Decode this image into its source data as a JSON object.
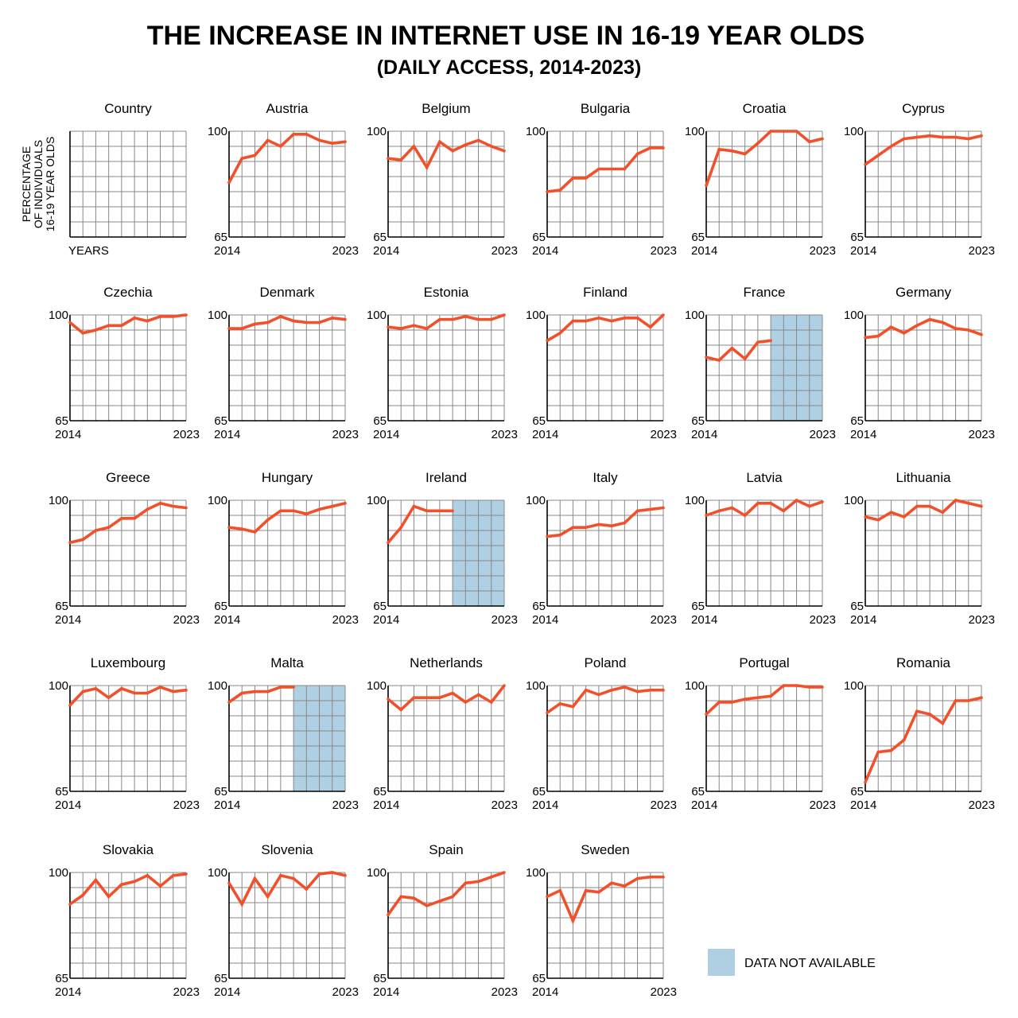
{
  "title": "THE INCREASE IN INTERNET USE IN 16-19 YEAR OLDS",
  "subtitle": "(DAILY ACCESS, 2014-2023)",
  "colors": {
    "line": "#F2502A",
    "grid": "#888888",
    "axis": "#000000",
    "unavailable": "#AFCFE2"
  },
  "key_panel": {
    "name": "Country",
    "ylabel_lines": [
      "PERCENTAGE",
      "OF INDIVIDUALS",
      "16-19 YEAR OLDS"
    ],
    "xlabel": "YEARS"
  },
  "legend": {
    "label": "DATA NOT AVAILABLE",
    "position": "bottom-right"
  },
  "chart_data": [
    {
      "type": "line",
      "title": "Austria",
      "x": [
        2014,
        2015,
        2016,
        2017,
        2018,
        2019,
        2020,
        2021,
        2022,
        2023
      ],
      "values": [
        83,
        91,
        92,
        97,
        95,
        99,
        99,
        97,
        96,
        96.5
      ],
      "ylim": [
        65,
        100
      ],
      "tick_labels": [
        "100",
        "65",
        "2014",
        "2023"
      ]
    },
    {
      "type": "line",
      "title": "Belgium",
      "x": [
        2014,
        2015,
        2016,
        2017,
        2018,
        2019,
        2020,
        2021,
        2022,
        2023
      ],
      "values": [
        91,
        90.5,
        95,
        88,
        96.5,
        93.5,
        95.5,
        97,
        95,
        93.5
      ],
      "ylim": [
        65,
        100
      ],
      "tick_labels": [
        "100",
        "65",
        "2014",
        "2023"
      ]
    },
    {
      "type": "line",
      "title": "Bulgaria",
      "x": [
        2014,
        2015,
        2016,
        2017,
        2018,
        2019,
        2020,
        2021,
        2022,
        2023
      ],
      "values": [
        80,
        80.5,
        84.5,
        84.5,
        87.5,
        87.5,
        87.5,
        92.5,
        94.5,
        94.5
      ],
      "ylim": [
        65,
        100
      ],
      "tick_labels": [
        "100",
        "65",
        "2014",
        "2023"
      ]
    },
    {
      "type": "line",
      "title": "Croatia",
      "x": [
        2014,
        2015,
        2016,
        2017,
        2018,
        2019,
        2020,
        2021,
        2022,
        2023
      ],
      "values": [
        82,
        94,
        93.5,
        92.5,
        96,
        100,
        100,
        100,
        96.5,
        97.5
      ],
      "ylim": [
        65,
        100
      ],
      "tick_labels": [
        "100",
        "65",
        "2014",
        "2023"
      ]
    },
    {
      "type": "line",
      "title": "Cyprus",
      "x": [
        2014,
        2015,
        2016,
        2017,
        2018,
        2019,
        2020,
        2021,
        2022,
        2023
      ],
      "values": [
        89,
        92,
        95,
        97.5,
        98,
        98.5,
        98,
        98,
        97.5,
        98.5
      ],
      "ylim": [
        65,
        100
      ],
      "tick_labels": [
        "100",
        "65",
        "2014",
        "2023"
      ]
    },
    {
      "type": "line",
      "title": "Czechia",
      "x": [
        2014,
        2015,
        2016,
        2017,
        2018,
        2019,
        2020,
        2021,
        2022,
        2023
      ],
      "values": [
        97.5,
        94,
        95,
        96.5,
        96.5,
        99,
        98,
        99.5,
        99.5,
        100
      ],
      "ylim": [
        65,
        100
      ],
      "tick_labels": [
        "100",
        "65",
        "2014",
        "2023"
      ]
    },
    {
      "type": "line",
      "title": "Denmark",
      "x": [
        2014,
        2015,
        2016,
        2017,
        2018,
        2019,
        2020,
        2021,
        2022,
        2023
      ],
      "values": [
        95.5,
        95.5,
        97,
        97.5,
        99.5,
        98,
        97.5,
        97.5,
        99,
        98.5
      ],
      "ylim": [
        65,
        100
      ],
      "tick_labels": [
        "100",
        "65",
        "2014",
        "2023"
      ]
    },
    {
      "type": "line",
      "title": "Estonia",
      "x": [
        2014,
        2015,
        2016,
        2017,
        2018,
        2019,
        2020,
        2021,
        2022,
        2023
      ],
      "values": [
        96,
        95.5,
        96.5,
        95.5,
        98.5,
        98.5,
        99.5,
        98.5,
        98.5,
        100
      ],
      "ylim": [
        65,
        100
      ],
      "tick_labels": [
        "100",
        "65",
        "2014",
        "2023"
      ]
    },
    {
      "type": "line",
      "title": "Finland",
      "x": [
        2014,
        2015,
        2016,
        2017,
        2018,
        2019,
        2020,
        2021,
        2022,
        2023
      ],
      "values": [
        91.5,
        94,
        98,
        98,
        99,
        98,
        99,
        99,
        96,
        100
      ],
      "ylim": [
        65,
        100
      ],
      "tick_labels": [
        "100",
        "65",
        "2014",
        "2023"
      ]
    },
    {
      "type": "line",
      "title": "France",
      "x": [
        2014,
        2015,
        2016,
        2017,
        2018,
        2019,
        2020,
        2021,
        2022,
        2023
      ],
      "values": [
        86,
        85,
        89,
        85.5,
        91,
        91.5,
        null,
        null,
        null,
        null
      ],
      "unavailable_years": [
        2019,
        2023
      ],
      "ylim": [
        65,
        100
      ],
      "tick_labels": [
        "100",
        "65",
        "2014",
        "2023"
      ]
    },
    {
      "type": "line",
      "title": "Germany",
      "x": [
        2014,
        2015,
        2016,
        2017,
        2018,
        2019,
        2020,
        2021,
        2022,
        2023
      ],
      "values": [
        92.5,
        93,
        96,
        94,
        96.5,
        98.5,
        97.5,
        95.5,
        95,
        93.5
      ],
      "ylim": [
        65,
        100
      ],
      "tick_labels": [
        "100",
        "65",
        "2014",
        "2023"
      ]
    },
    {
      "type": "line",
      "title": "Greece",
      "x": [
        2014,
        2015,
        2016,
        2017,
        2018,
        2019,
        2020,
        2021,
        2022,
        2023
      ],
      "values": [
        86,
        87,
        90,
        91,
        94,
        94,
        97,
        99,
        98,
        97.5
      ],
      "ylim": [
        65,
        100
      ],
      "tick_labels": [
        "100",
        "65",
        "2014",
        "2023"
      ]
    },
    {
      "type": "line",
      "title": "Hungary",
      "x": [
        2014,
        2015,
        2016,
        2017,
        2018,
        2019,
        2020,
        2021,
        2022,
        2023
      ],
      "values": [
        91,
        90.5,
        89.5,
        93.5,
        96.5,
        96.5,
        95.5,
        97,
        98,
        99
      ],
      "ylim": [
        65,
        100
      ],
      "tick_labels": [
        "100",
        "65",
        "2014",
        "2023"
      ]
    },
    {
      "type": "line",
      "title": "Ireland",
      "x": [
        2014,
        2015,
        2016,
        2017,
        2018,
        2019,
        2020,
        2021,
        2022,
        2023
      ],
      "values": [
        86,
        91,
        98,
        96.5,
        96.5,
        96.5,
        null,
        null,
        null,
        null
      ],
      "unavailable_years": [
        2019,
        2023
      ],
      "ylim": [
        65,
        100
      ],
      "tick_labels": [
        "100",
        "65",
        "2014",
        "2023"
      ]
    },
    {
      "type": "line",
      "title": "Italy",
      "x": [
        2014,
        2015,
        2016,
        2017,
        2018,
        2019,
        2020,
        2021,
        2022,
        2023
      ],
      "values": [
        88,
        88.5,
        91,
        91,
        92,
        91.5,
        92.5,
        96.5,
        97,
        97.5
      ],
      "ylim": [
        65,
        100
      ],
      "tick_labels": [
        "100",
        "65",
        "2014",
        "2023"
      ]
    },
    {
      "type": "line",
      "title": "Latvia",
      "x": [
        2014,
        2015,
        2016,
        2017,
        2018,
        2019,
        2020,
        2021,
        2022,
        2023
      ],
      "values": [
        95,
        96.5,
        97.5,
        95,
        99,
        99,
        96.5,
        100,
        98,
        99.5
      ],
      "ylim": [
        65,
        100
      ],
      "tick_labels": [
        "100",
        "65",
        "2014",
        "2023"
      ]
    },
    {
      "type": "line",
      "title": "Lithuania",
      "x": [
        2014,
        2015,
        2016,
        2017,
        2018,
        2019,
        2020,
        2021,
        2022,
        2023
      ],
      "values": [
        94.5,
        93.5,
        96,
        94.5,
        98,
        98,
        96,
        100,
        99,
        98
      ],
      "ylim": [
        65,
        100
      ],
      "tick_labels": [
        "100",
        "65",
        "2014",
        "2023"
      ]
    },
    {
      "type": "line",
      "title": "Luxembourg",
      "x": [
        2014,
        2015,
        2016,
        2017,
        2018,
        2019,
        2020,
        2021,
        2022,
        2023
      ],
      "values": [
        93.5,
        98,
        99,
        96,
        99,
        97.5,
        97.5,
        99.5,
        98,
        98.5
      ],
      "ylim": [
        65,
        100
      ],
      "tick_labels": [
        "100",
        "65",
        "2014",
        "2023"
      ]
    },
    {
      "type": "line",
      "title": "Malta",
      "x": [
        2014,
        2015,
        2016,
        2017,
        2018,
        2019,
        2020,
        2021,
        2022,
        2023
      ],
      "values": [
        94.5,
        97.5,
        98,
        98,
        99.5,
        99.5,
        null,
        null,
        null,
        null
      ],
      "unavailable_years": [
        2019,
        2023
      ],
      "ylim": [
        65,
        100
      ],
      "tick_labels": [
        "100",
        "65",
        "2014",
        "2023"
      ]
    },
    {
      "type": "line",
      "title": "Netherlands",
      "x": [
        2014,
        2015,
        2016,
        2017,
        2018,
        2019,
        2020,
        2021,
        2022,
        2023
      ],
      "values": [
        95.5,
        92,
        96,
        96,
        96,
        97.5,
        94.5,
        97,
        94.5,
        100
      ],
      "ylim": [
        65,
        100
      ],
      "tick_labels": [
        "100",
        "65",
        "2014",
        "2023"
      ]
    },
    {
      "type": "line",
      "title": "Poland",
      "x": [
        2014,
        2015,
        2016,
        2017,
        2018,
        2019,
        2020,
        2021,
        2022,
        2023
      ],
      "values": [
        91,
        94,
        93,
        98.5,
        97,
        98.5,
        99.5,
        98,
        98.5,
        98.5
      ],
      "ylim": [
        65,
        100
      ],
      "tick_labels": [
        "100",
        "65",
        "2014",
        "2023"
      ]
    },
    {
      "type": "line",
      "title": "Portugal",
      "x": [
        2014,
        2015,
        2016,
        2017,
        2018,
        2019,
        2020,
        2021,
        2022,
        2023
      ],
      "values": [
        90.5,
        94.5,
        94.5,
        95.5,
        96,
        96.5,
        100,
        100,
        99.5,
        99.5
      ],
      "ylim": [
        65,
        100
      ],
      "tick_labels": [
        "100",
        "65",
        "2014",
        "2023"
      ]
    },
    {
      "type": "line",
      "title": "Romania",
      "x": [
        2014,
        2015,
        2016,
        2017,
        2018,
        2019,
        2020,
        2021,
        2022,
        2023
      ],
      "values": [
        68,
        78,
        78.5,
        82,
        91.5,
        90.5,
        87.5,
        95,
        95,
        96
      ],
      "ylim": [
        65,
        100
      ],
      "tick_labels": [
        "100",
        "65",
        "2014",
        "2023"
      ]
    },
    {
      "type": "line",
      "title": "Slovakia",
      "x": [
        2014,
        2015,
        2016,
        2017,
        2018,
        2019,
        2020,
        2021,
        2022,
        2023
      ],
      "values": [
        89.5,
        92.5,
        97.5,
        92,
        96,
        97,
        99,
        95.5,
        99,
        99.5
      ],
      "ylim": [
        65,
        100
      ],
      "tick_labels": [
        "100",
        "65",
        "2014",
        "2023"
      ]
    },
    {
      "type": "line",
      "title": "Slovenia",
      "x": [
        2014,
        2015,
        2016,
        2017,
        2018,
        2019,
        2020,
        2021,
        2022,
        2023
      ],
      "values": [
        96.5,
        89.5,
        98,
        92,
        99,
        98,
        94.5,
        99.5,
        100,
        99
      ],
      "ylim": [
        65,
        100
      ],
      "tick_labels": [
        "100",
        "65",
        "2014",
        "2023"
      ]
    },
    {
      "type": "line",
      "title": "Spain",
      "x": [
        2014,
        2015,
        2016,
        2017,
        2018,
        2019,
        2020,
        2021,
        2022,
        2023
      ],
      "values": [
        86,
        92,
        91.5,
        89,
        90.5,
        92,
        96.5,
        97,
        98.5,
        100
      ],
      "ylim": [
        65,
        100
      ],
      "tick_labels": [
        "100",
        "65",
        "2014",
        "2023"
      ]
    },
    {
      "type": "line",
      "title": "Sweden",
      "x": [
        2014,
        2015,
        2016,
        2017,
        2018,
        2019,
        2020,
        2021,
        2022,
        2023
      ],
      "values": [
        92,
        94,
        84,
        94,
        93.5,
        96.5,
        95.5,
        98,
        98.5,
        98.5
      ],
      "ylim": [
        65,
        100
      ],
      "tick_labels": [
        "100",
        "65",
        "2014",
        "2023"
      ]
    }
  ]
}
